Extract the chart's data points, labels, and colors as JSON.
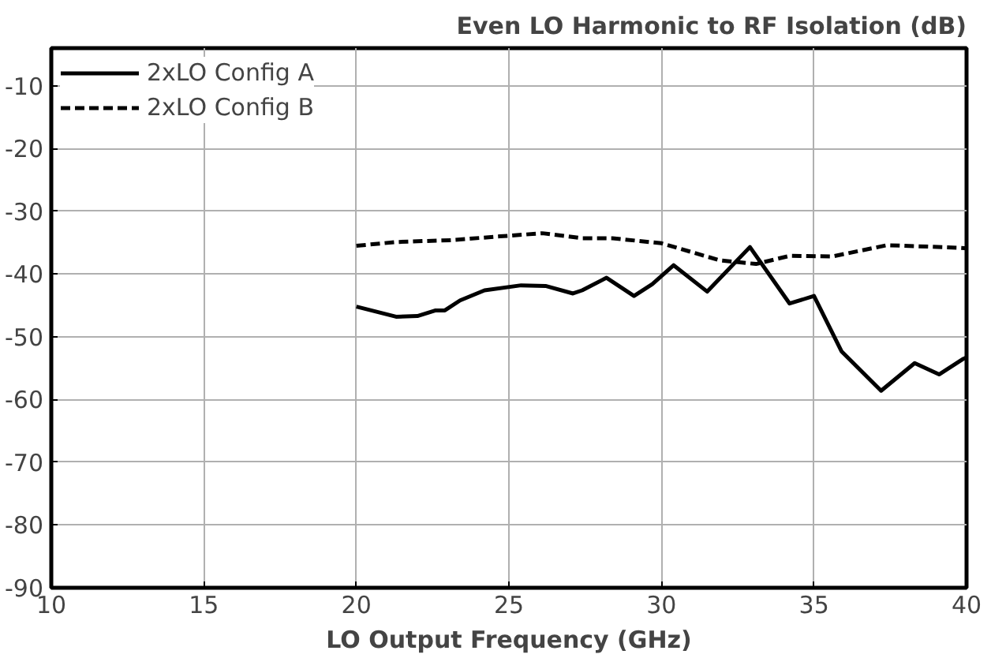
{
  "chart_data": {
    "type": "line",
    "title": "Even LO Harmonic to RF Isolation (dB)",
    "xlabel": "LO Output Frequency (GHz)",
    "xlim": [
      10,
      40
    ],
    "xticks": [
      10,
      15,
      20,
      25,
      30,
      35,
      40
    ],
    "ylim": [
      -90,
      -4
    ],
    "yticks": [
      -90,
      -80,
      -70,
      -60,
      -50,
      -40,
      -30,
      -20,
      -10
    ],
    "grid": true,
    "legend": "top left",
    "marker": "none",
    "series": [
      {
        "name": "2xLO Config A",
        "color": "#000000",
        "line_style": "solid",
        "x": [
          20,
          21.3,
          22.0,
          22.6,
          22.9,
          23.4,
          24.2,
          25.4,
          26.2,
          27.1,
          27.4,
          28.2,
          29.1,
          29.7,
          30.4,
          31.5,
          32.9,
          34.2,
          35.0,
          35.9,
          37.2,
          38.3,
          39.1,
          39.9,
          40
        ],
        "values": [
          -45.2,
          -46.8,
          -46.7,
          -45.8,
          -45.8,
          -44.2,
          -42.6,
          -41.8,
          -41.9,
          -43.1,
          -42.6,
          -40.6,
          -43.5,
          -41.6,
          -38.6,
          -42.8,
          -35.7,
          -44.7,
          -43.5,
          -52.3,
          -58.6,
          -54.2,
          -56.0,
          -53.5,
          -53.3
        ]
      },
      {
        "name": "2xLO Config B",
        "color": "#000000",
        "line_style": "dashed",
        "x": [
          20,
          21.3,
          23.1,
          24.7,
          26.1,
          27.4,
          28.4,
          30,
          31.9,
          33.1,
          34.2,
          35.6,
          37.4,
          39.7,
          40
        ],
        "values": [
          -35.5,
          -34.9,
          -34.6,
          -34.0,
          -33.5,
          -34.3,
          -34.3,
          -35.1,
          -37.8,
          -38.4,
          -37.1,
          -37.2,
          -35.4,
          -35.8,
          -35.9
        ]
      }
    ]
  }
}
